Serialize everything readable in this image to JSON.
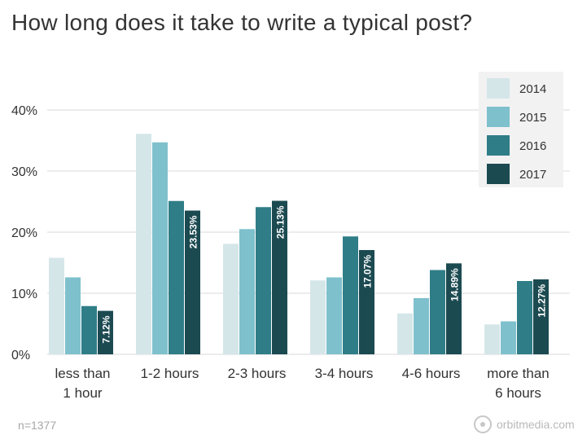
{
  "title": "How long does it take to write a typical post?",
  "footnote": "n=1377",
  "brand": "orbitmedia.com",
  "colors": {
    "2014": "#d5e6e9",
    "2015": "#7fc0cd",
    "2016": "#2f7d87",
    "2017": "#1c4a51",
    "grid": "#d9d9d9",
    "axis_text": "#333333",
    "legend_bg": "#f2f2f2"
  },
  "chart_data": {
    "type": "bar",
    "title": "How long does it take to write a typical post?",
    "categories": [
      [
        "less than",
        "1 hour"
      ],
      [
        "1-2 hours"
      ],
      [
        "2-3 hours"
      ],
      [
        "3-4 hours"
      ],
      [
        "4-6 hours"
      ],
      [
        "more than",
        "6 hours"
      ]
    ],
    "series": [
      {
        "name": "2014",
        "values": [
          15.8,
          36.1,
          18.1,
          12.1,
          6.7,
          4.9
        ]
      },
      {
        "name": "2015",
        "values": [
          12.6,
          34.7,
          20.5,
          12.6,
          9.2,
          5.4
        ]
      },
      {
        "name": "2016",
        "values": [
          7.9,
          25.1,
          24.1,
          19.3,
          13.8,
          12.0
        ]
      },
      {
        "name": "2017",
        "values": [
          7.12,
          23.53,
          25.13,
          17.07,
          14.89,
          12.27
        ]
      }
    ],
    "data_labels": {
      "series": "2017",
      "labels": [
        "7.12%",
        "23.53%",
        "25.13%",
        "17.07%",
        "14.89%",
        "12.27%"
      ]
    },
    "y_ticks": [
      "0%",
      "10%",
      "20%",
      "30%",
      "40%"
    ],
    "ylim": [
      0,
      40
    ],
    "xlabel": "",
    "ylabel": "",
    "grid": true,
    "legend_position": "top-right"
  }
}
